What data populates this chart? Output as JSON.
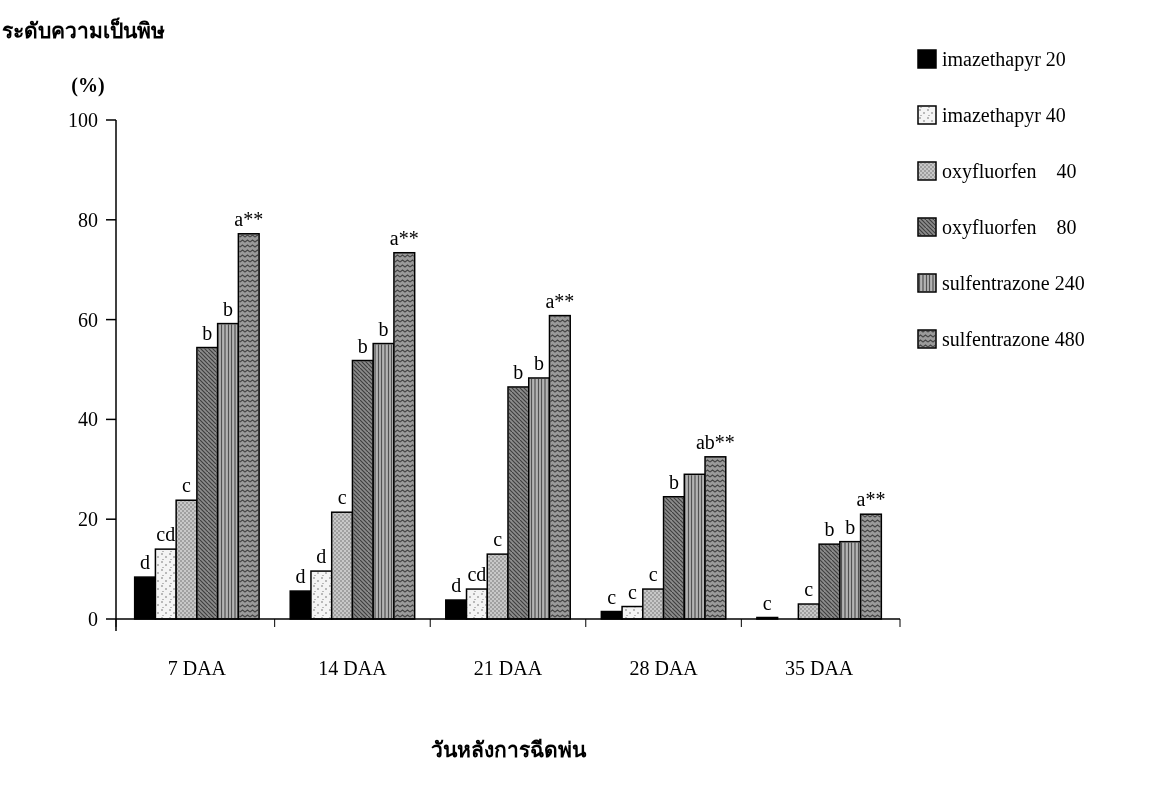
{
  "chart_data": {
    "type": "bar",
    "ylabel": "ระดับความเป็นพิษ (%)",
    "xlabel": "วันหลังการฉีดพ่น",
    "categories": [
      "7 DAA",
      "14 DAA",
      "21 DAA",
      "28 DAA",
      "35 DAA"
    ],
    "ylim": [
      0,
      100
    ],
    "yticks": [
      0,
      20,
      40,
      60,
      80,
      100
    ],
    "grid": false,
    "legend": "top right",
    "series": [
      {
        "name": "imazethapyr 20",
        "color": "#000000",
        "values": [
          8.4,
          5.6,
          3.8,
          1.5,
          0.3
        ],
        "value_labels": [
          "d",
          "d",
          "d",
          "c",
          "c"
        ]
      },
      {
        "name": "imazethapyr 40",
        "color": "#f4f4f4",
        "values": [
          14,
          9.6,
          6,
          2.5,
          null
        ],
        "value_labels": [
          "cd",
          "d",
          "cd",
          "c",
          null
        ]
      },
      {
        "name": "oxyfluorfen    40",
        "color": "#c8c8c8",
        "values": [
          23.8,
          21.4,
          13,
          6,
          3
        ],
        "value_labels": [
          "c",
          "c",
          "c",
          "c",
          "c"
        ]
      },
      {
        "name": "oxyfluorfen    80",
        "color": "#8c8c8c",
        "values": [
          54.4,
          51.8,
          46.5,
          24.5,
          15
        ],
        "value_labels": [
          "b",
          "b",
          "b",
          "b",
          "b"
        ]
      },
      {
        "name": "sulfentrazone 240",
        "color": "#b4b4b4",
        "values": [
          59.2,
          55.2,
          48.3,
          29,
          15.5
        ],
        "value_labels": [
          "b",
          "b",
          "b",
          null,
          "b"
        ]
      },
      {
        "name": "sulfentrazone 480",
        "color": "#9a9a9a",
        "values": [
          77.2,
          73.4,
          60.8,
          32.5,
          21
        ],
        "value_labels": [
          "a**",
          "a**",
          "a**",
          "ab**",
          "a**"
        ]
      }
    ]
  }
}
